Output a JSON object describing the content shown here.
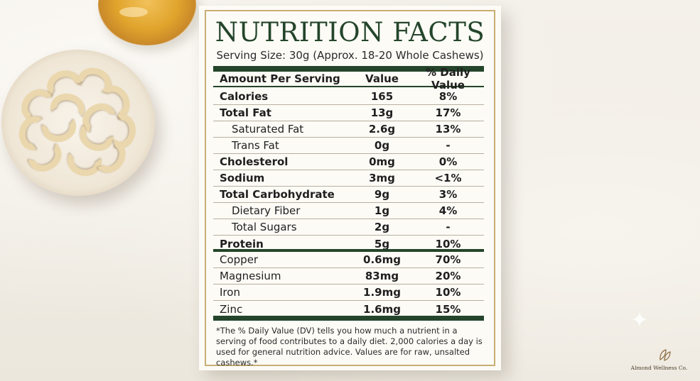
{
  "card": {
    "title": "NUTRITION FACTS",
    "serving_size": "Serving Size: 30g (Approx. 18-20 Whole Cashews)"
  },
  "table": {
    "headers": [
      "Amount Per Serving",
      "Value",
      "% Daily Value"
    ],
    "rows": [
      {
        "name": "Calories",
        "value": "165",
        "dv": "8%",
        "bold": true,
        "indent": false
      },
      {
        "name": "Total Fat",
        "value": "13g",
        "dv": "17%",
        "bold": true,
        "indent": false
      },
      {
        "name": "Saturated Fat",
        "value": "2.6g",
        "dv": "13%",
        "bold": false,
        "indent": true
      },
      {
        "name": "Trans Fat",
        "value": "0g",
        "dv": "-",
        "bold": false,
        "indent": true
      },
      {
        "name": "Cholesterol",
        "value": "0mg",
        "dv": "0%",
        "bold": true,
        "indent": false
      },
      {
        "name": "Sodium",
        "value": "3mg",
        "dv": "<1%",
        "bold": true,
        "indent": false
      },
      {
        "name": "Total Carbohydrate",
        "value": "9g",
        "dv": "3%",
        "bold": true,
        "indent": false
      },
      {
        "name": "Dietary Fiber",
        "value": "1g",
        "dv": "4%",
        "bold": false,
        "indent": true
      },
      {
        "name": "Total Sugars",
        "value": "2g",
        "dv": "-",
        "bold": false,
        "indent": true
      },
      {
        "name": "Protein",
        "value": "5g",
        "dv": "10%",
        "bold": true,
        "indent": false
      }
    ],
    "minerals": [
      {
        "name": "Copper",
        "value": "0.6mg",
        "dv": "70%"
      },
      {
        "name": "Magnesium",
        "value": "83mg",
        "dv": "20%"
      },
      {
        "name": "Iron",
        "value": "1.9mg",
        "dv": "10%"
      },
      {
        "name": "Zinc",
        "value": "1.6mg",
        "dv": "15%"
      }
    ]
  },
  "footnote": "*The % Daily Value (DV) tells you how much a nutrient in a serving of food contributes to a daily diet. 2,000 calories a day is used for general nutrition advice. Values are for raw, unsalted cashews.*",
  "brand": {
    "name": "Almond Wellness Co.",
    "logo_icon": "almond-leaf-icon"
  },
  "colors": {
    "accent_green": "#24452b",
    "frame_gold": "#c9ae74"
  }
}
